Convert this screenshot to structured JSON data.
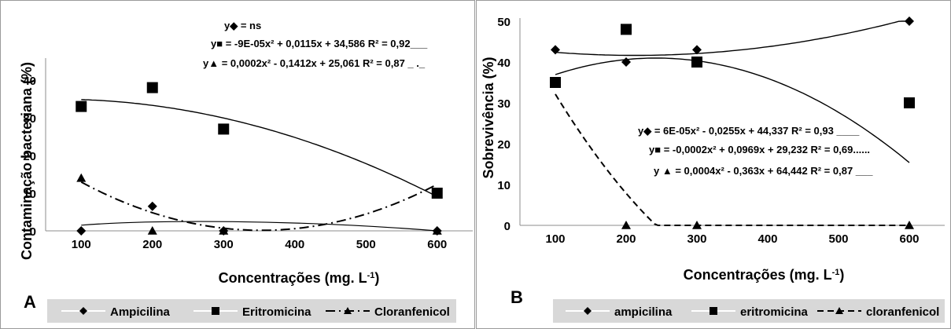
{
  "chart_data": [
    {
      "panel_letter": "A",
      "type": "scatter",
      "xlabel": "Concentrações (mg. L",
      "xlabel_sup": "-1",
      "xlabel_end": ")",
      "ylabel": "Contaminação bacteriana (%)",
      "x_categories": [
        "100",
        "200",
        "300",
        "400",
        "500",
        "600"
      ],
      "y_ticks": [
        "0",
        "10",
        "20",
        "30",
        "40"
      ],
      "ylim": [
        0,
        45
      ],
      "series": [
        {
          "name": "Ampicilina",
          "marker": "diamond",
          "x": [
            100,
            200,
            300,
            600
          ],
          "y": [
            0,
            6.5,
            0,
            0
          ],
          "trend": null,
          "equation": "y◆ = ns"
        },
        {
          "name": "Eritromicina",
          "marker": "square",
          "x": [
            100,
            200,
            300,
            600
          ],
          "y": [
            33,
            38,
            27,
            10
          ],
          "trend": [
            34.586,
            0.0115,
            -9e-05
          ],
          "equation": "y■ = -9E-05x² + 0,0115x + 34,586 R² = 0,92___"
        },
        {
          "name": "Cloranfenicol",
          "marker": "triangle",
          "x": [
            100,
            200,
            300,
            600
          ],
          "y": [
            14,
            0,
            0,
            0
          ],
          "trend": [
            25.061,
            -0.1412,
            0.0002
          ],
          "equation": "y▲ = 0,0002x² - 0,1412x + 25,061 R² = 0,87 _ ._"
        }
      ],
      "legend": [
        {
          "marker": "diamond",
          "label": "Ampicilina"
        },
        {
          "marker": "square",
          "label": "Eritromicina"
        },
        {
          "marker": "triangle",
          "label": "Cloranfenicol"
        }
      ]
    },
    {
      "panel_letter": "B",
      "type": "scatter",
      "xlabel": "Concentrações (mg. L",
      "xlabel_sup": "-1",
      "xlabel_end": ")",
      "ylabel": "Sobrevivência (%)",
      "x_categories": [
        "100",
        "200",
        "300",
        "400",
        "500",
        "600"
      ],
      "y_ticks": [
        "0",
        "10",
        "20",
        "30",
        "40",
        "50"
      ],
      "ylim": [
        0,
        50
      ],
      "series": [
        {
          "name": "ampicilina",
          "marker": "diamond",
          "x": [
            100,
            200,
            300,
            600
          ],
          "y": [
            43,
            40,
            43,
            50
          ],
          "trend": [
            44.337,
            -0.0255,
            6e-05
          ],
          "equation": "y◆ = 6E-05x² - 0,0255x + 44,337 R² = 0,93 ____"
        },
        {
          "name": "eritromicina",
          "marker": "square",
          "x": [
            100,
            200,
            300,
            600
          ],
          "y": [
            35,
            48,
            40,
            30
          ],
          "trend": [
            29.232,
            0.0969,
            -0.0002
          ],
          "equation": "y■ = -0,0002x² + 0,0969x + 29,232 R² = 0,69......"
        },
        {
          "name": "cloranfenicol",
          "marker": "triangle",
          "x": [
            100,
            200,
            300,
            600
          ],
          "y": [
            35,
            0,
            0,
            0
          ],
          "trend": [
            64.442,
            -0.363,
            0.0004
          ],
          "equation": "y ▲ = 0,0004x² - 0,363x + 64,442 R² = 0,87 ___"
        }
      ],
      "legend": [
        {
          "marker": "diamond",
          "label": "ampicilina"
        },
        {
          "marker": "square",
          "label": "eritromicina"
        },
        {
          "marker": "triangle",
          "label": "cloranfenicol"
        }
      ]
    }
  ]
}
